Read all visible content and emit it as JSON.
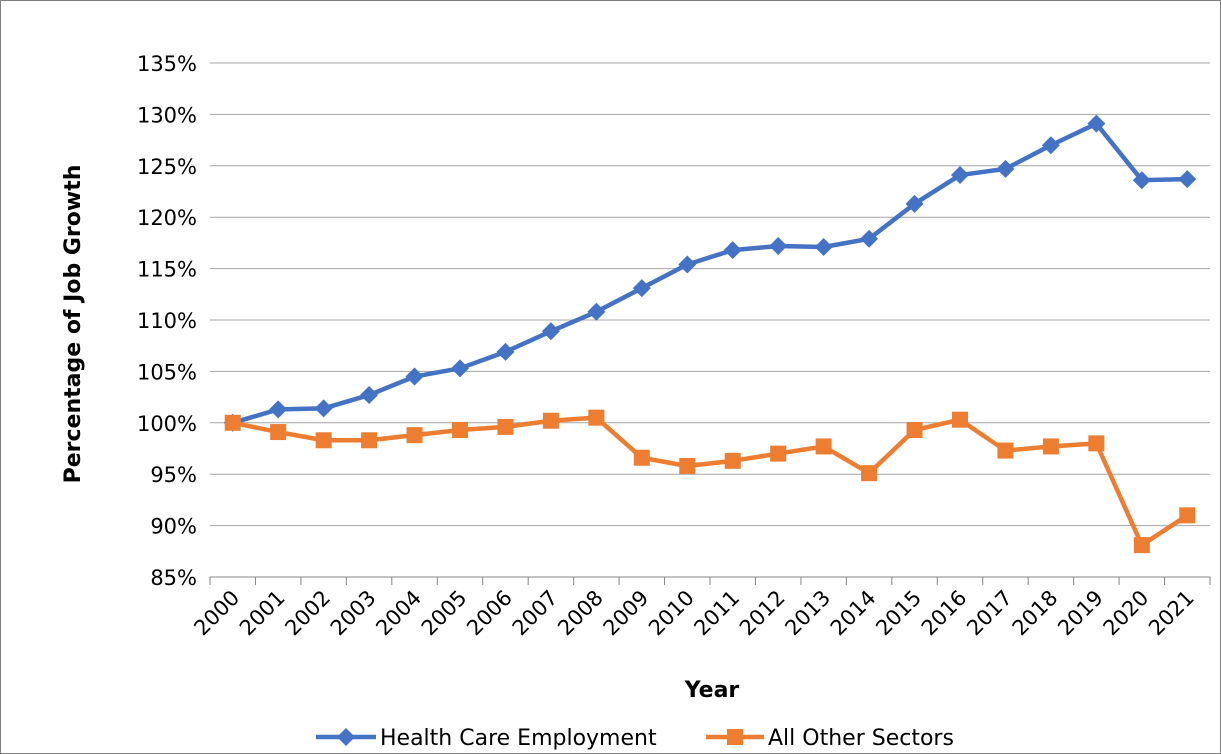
{
  "chart_data": {
    "type": "line",
    "title": "",
    "xlabel": "Year",
    "ylabel": "Percentage of Job Growth",
    "x": [
      "2000",
      "2001",
      "2002",
      "2003",
      "2004",
      "2005",
      "2006",
      "2007",
      "2008",
      "2009",
      "2010",
      "2011",
      "2012",
      "2013",
      "2014",
      "2015",
      "2016",
      "2017",
      "2018",
      "2019",
      "2020",
      "2021"
    ],
    "ylim": [
      0.85,
      1.35
    ],
    "yticks": [
      0.85,
      0.9,
      0.95,
      1.0,
      1.05,
      1.1,
      1.15,
      1.2,
      1.25,
      1.3,
      1.35
    ],
    "ytick_labels": [
      "85%",
      "90%",
      "95%",
      "100%",
      "105%",
      "110%",
      "115%",
      "120%",
      "125%",
      "130%",
      "135%"
    ],
    "grid": "horizontal",
    "legend_position": "bottom",
    "series": [
      {
        "name": "Health Care Employment",
        "color": "#4472c4",
        "marker": "diamond",
        "values": [
          1.0,
          1.013,
          1.014,
          1.027,
          1.045,
          1.053,
          1.069,
          1.089,
          1.108,
          1.131,
          1.154,
          1.168,
          1.172,
          1.171,
          1.179,
          1.213,
          1.241,
          1.247,
          1.27,
          1.291,
          1.236,
          1.237
        ]
      },
      {
        "name": "All Other Sectors",
        "color": "#ed7d31",
        "marker": "square",
        "values": [
          1.0,
          0.991,
          0.983,
          0.983,
          0.988,
          0.993,
          0.996,
          1.002,
          1.005,
          0.966,
          0.958,
          0.963,
          0.97,
          0.977,
          0.951,
          0.993,
          1.003,
          0.973,
          0.977,
          0.98,
          0.881,
          0.91
        ]
      }
    ]
  }
}
